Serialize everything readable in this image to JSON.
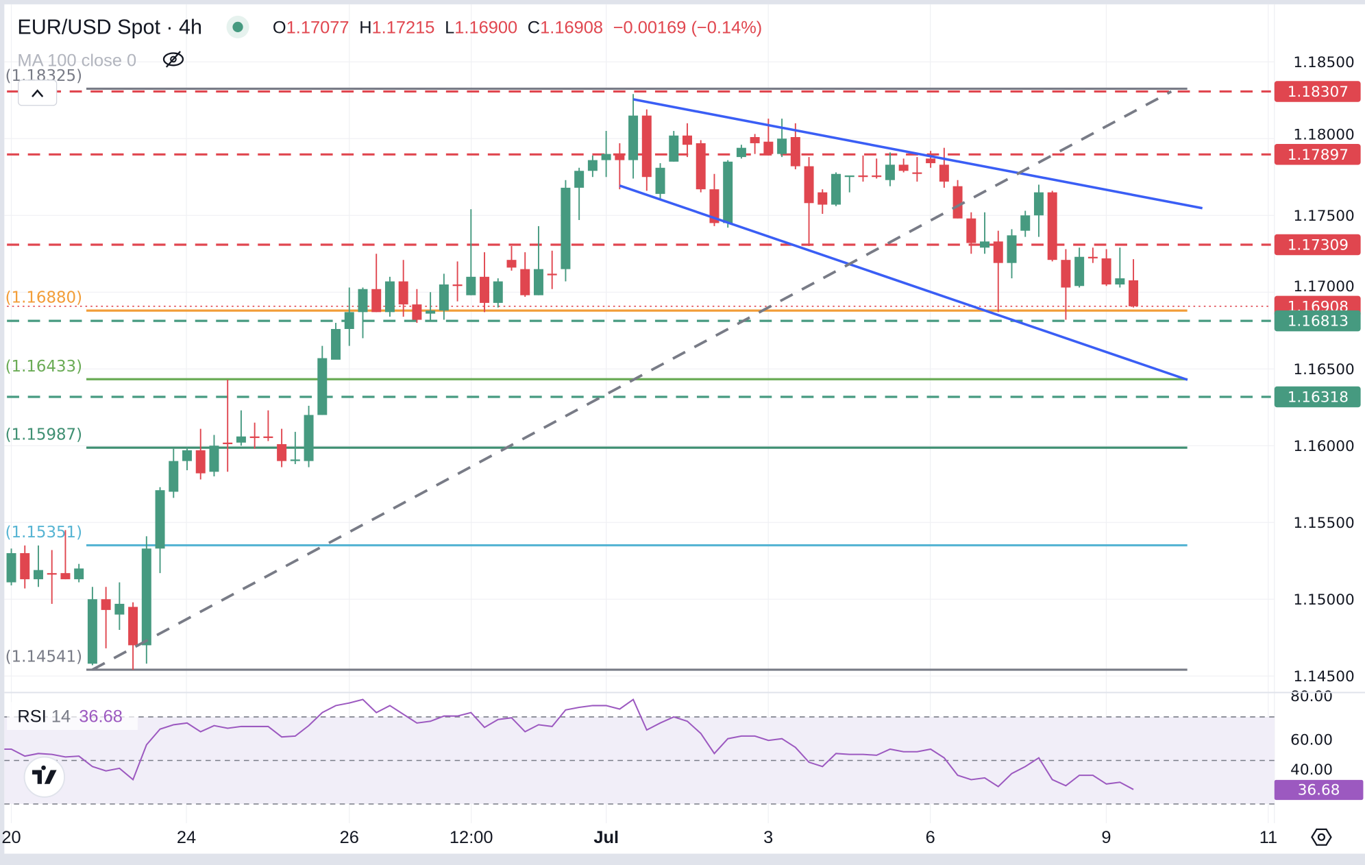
{
  "header": {
    "symbol": "EUR/USD Spot · 4h",
    "market_status_color": "#469a80",
    "ohlc": {
      "o_label": "O",
      "o": "1.17077",
      "h_label": "H",
      "h": "1.17215",
      "l_label": "L",
      "l": "1.16900",
      "c_label": "C",
      "c": "1.16908",
      "change": "−0.00169 (−0.14%)"
    },
    "indicator": "MA 100 close 0",
    "indicator_icon": "eye-off-icon",
    "collapse_icon": "chevron-up-icon"
  },
  "colors": {
    "up": "#469a80",
    "down": "#e0464f",
    "trendline": "#3a5ef5",
    "rsi": "#9c59c0",
    "rsi_band": "#f1eef8"
  },
  "chart_data": {
    "type": "candlestick",
    "title": "EUR/USD Spot · 4h",
    "ylim": [
      1.1445,
      1.1855
    ],
    "y_ticks": [
      "1.18500",
      "1.18000",
      "1.17500",
      "1.17000",
      "1.16500",
      "1.16000",
      "1.15500",
      "1.15000",
      "1.14500"
    ],
    "y_tick_values": [
      1.185,
      1.18,
      1.175,
      1.17,
      1.165,
      1.16,
      1.155,
      1.15,
      1.145
    ],
    "x_ticks": [
      "20",
      "24",
      "26",
      "12:00",
      "Jul",
      "3",
      "6",
      "9",
      "11"
    ],
    "grid": true,
    "candles_ohlc": [
      [
        1.1511,
        1.1533,
        1.1509,
        1.153
      ],
      [
        1.153,
        1.1535,
        1.1507,
        1.1513
      ],
      [
        1.1513,
        1.1535,
        1.1508,
        1.1519
      ],
      [
        1.1517,
        1.1532,
        1.1497,
        1.1516
      ],
      [
        1.1517,
        1.1545,
        1.1513,
        1.1513
      ],
      [
        1.1513,
        1.1523,
        1.1511,
        1.152
      ],
      [
        1.1458,
        1.1508,
        1.1457,
        1.15
      ],
      [
        1.15,
        1.1508,
        1.1468,
        1.1493
      ],
      [
        1.149,
        1.1511,
        1.148,
        1.1497
      ],
      [
        1.1495,
        1.1498,
        1.1454,
        1.147
      ],
      [
        1.147,
        1.1541,
        1.1458,
        1.1533
      ],
      [
        1.1533,
        1.1573,
        1.1517,
        1.1571
      ],
      [
        1.157,
        1.1598,
        1.1566,
        1.159
      ],
      [
        1.159,
        1.1599,
        1.1584,
        1.1597
      ],
      [
        1.1597,
        1.1611,
        1.1578,
        1.1582
      ],
      [
        1.1583,
        1.1607,
        1.158,
        1.16
      ],
      [
        1.1602,
        1.1643,
        1.1583,
        1.1601
      ],
      [
        1.1602,
        1.1623,
        1.16,
        1.1606
      ],
      [
        1.1606,
        1.1615,
        1.1598,
        1.1605
      ],
      [
        1.1606,
        1.1623,
        1.1603,
        1.1605
      ],
      [
        1.1601,
        1.1611,
        1.1586,
        1.159
      ],
      [
        1.159,
        1.1609,
        1.1588,
        1.1591
      ],
      [
        1.159,
        1.1626,
        1.1586,
        1.162
      ],
      [
        1.162,
        1.1665,
        1.162,
        1.1657
      ],
      [
        1.1656,
        1.168,
        1.1665,
        1.1676
      ],
      [
        1.1676,
        1.1703,
        1.1665,
        1.1687
      ],
      [
        1.1687,
        1.1703,
        1.167,
        1.1702
      ],
      [
        1.1702,
        1.1725,
        1.1687,
        1.1687
      ],
      [
        1.1687,
        1.171,
        1.1684,
        1.1707
      ],
      [
        1.1707,
        1.1721,
        1.1684,
        1.1692
      ],
      [
        1.1692,
        1.1702,
        1.168,
        1.1682
      ],
      [
        1.1686,
        1.17,
        1.1682,
        1.1688
      ],
      [
        1.1688,
        1.1712,
        1.1682,
        1.1705
      ],
      [
        1.1705,
        1.172,
        1.1694,
        1.1704
      ],
      [
        1.1698,
        1.1754,
        1.1698,
        1.171
      ],
      [
        1.171,
        1.1726,
        1.1687,
        1.1693
      ],
      [
        1.1693,
        1.1709,
        1.169,
        1.1707
      ],
      [
        1.1721,
        1.173,
        1.1714,
        1.1716
      ],
      [
        1.1715,
        1.1726,
        1.1697,
        1.1698
      ],
      [
        1.1698,
        1.1743,
        1.1698,
        1.1715
      ],
      [
        1.1712,
        1.1727,
        1.1702,
        1.1711
      ],
      [
        1.1715,
        1.1773,
        1.1707,
        1.1768
      ],
      [
        1.1768,
        1.1781,
        1.1747,
        1.1779
      ],
      [
        1.1779,
        1.1789,
        1.1775,
        1.1786
      ],
      [
        1.1786,
        1.1805,
        1.1775,
        1.179
      ],
      [
        1.179,
        1.1797,
        1.1767,
        1.1786
      ],
      [
        1.1786,
        1.1829,
        1.1774,
        1.1815
      ],
      [
        1.1815,
        1.1819,
        1.1766,
        1.1775
      ],
      [
        1.1764,
        1.1784,
        1.176,
        1.1781
      ],
      [
        1.1785,
        1.1805,
        1.1785,
        1.1802
      ],
      [
        1.1802,
        1.181,
        1.1788,
        1.1796
      ],
      [
        1.1797,
        1.1799,
        1.1765,
        1.1767
      ],
      [
        1.1767,
        1.1777,
        1.1743,
        1.1745
      ],
      [
        1.1745,
        1.1786,
        1.1742,
        1.1785
      ],
      [
        1.1788,
        1.1796,
        1.1787,
        1.1794
      ],
      [
        1.1801,
        1.1803,
        1.179,
        1.1797
      ],
      [
        1.1798,
        1.1813,
        1.1789,
        1.179
      ],
      [
        1.179,
        1.1813,
        1.1788,
        1.18
      ],
      [
        1.1801,
        1.181,
        1.178,
        1.1782
      ],
      [
        1.1782,
        1.1788,
        1.173,
        1.1758
      ],
      [
        1.1765,
        1.1767,
        1.1751,
        1.1757
      ],
      [
        1.1757,
        1.1778,
        1.1756,
        1.1777
      ],
      [
        1.1775,
        1.1776,
        1.1765,
        1.1776
      ],
      [
        1.1776,
        1.1789,
        1.1772,
        1.1775
      ],
      [
        1.1776,
        1.1787,
        1.1774,
        1.1775
      ],
      [
        1.1773,
        1.1791,
        1.1769,
        1.1783
      ],
      [
        1.1783,
        1.1787,
        1.1778,
        1.1779
      ],
      [
        1.1778,
        1.1788,
        1.1772,
        1.1777
      ],
      [
        1.1787,
        1.1792,
        1.1781,
        1.1784
      ],
      [
        1.1783,
        1.1794,
        1.1768,
        1.1772
      ],
      [
        1.1769,
        1.1773,
        1.1748,
        1.1748
      ],
      [
        1.1748,
        1.1752,
        1.1725,
        1.1732
      ],
      [
        1.1729,
        1.1752,
        1.1725,
        1.1733
      ],
      [
        1.1733,
        1.174,
        1.1687,
        1.1719
      ],
      [
        1.1719,
        1.1741,
        1.1709,
        1.1737
      ],
      [
        1.174,
        1.1753,
        1.1736,
        1.175
      ],
      [
        1.175,
        1.177,
        1.1736,
        1.1765
      ],
      [
        1.1765,
        1.1766,
        1.172,
        1.1721
      ],
      [
        1.1721,
        1.1728,
        1.1682,
        1.1703
      ],
      [
        1.1704,
        1.1729,
        1.1703,
        1.1723
      ],
      [
        1.1723,
        1.1729,
        1.1719,
        1.1722
      ],
      [
        1.1722,
        1.1728,
        1.1704,
        1.1705
      ],
      [
        1.1705,
        1.1729,
        1.1703,
        1.1709
      ],
      [
        1.17077,
        1.17215,
        1.169,
        1.16908
      ]
    ],
    "levels": [
      {
        "price": 1.18325,
        "label": "(1.18325)",
        "color": "#787b86",
        "style": "solid",
        "left_label": true,
        "from_bar": 6
      },
      {
        "price": 1.18307,
        "label": "1.18307",
        "color": "#e0464f",
        "style": "dashed",
        "badge": true
      },
      {
        "price": 1.17897,
        "label": "1.17897",
        "color": "#e0464f",
        "style": "dashed",
        "badge": true
      },
      {
        "price": 1.17309,
        "label": "1.17309",
        "color": "#e0464f",
        "style": "dashed",
        "badge": true
      },
      {
        "price": 1.16908,
        "label": "1.16908",
        "color": "#e0464f",
        "style": "dotted",
        "badge": true
      },
      {
        "price": 1.1688,
        "label": "(1.16880)",
        "color": "#f29d38",
        "style": "solid",
        "left_label": true,
        "from_bar": 6
      },
      {
        "price": 1.16813,
        "label": "1.16813",
        "color": "#469a80",
        "style": "dashed",
        "badge": true
      },
      {
        "price": 1.16433,
        "label": "(1.16433)",
        "color": "#6aab55",
        "style": "solid",
        "left_label": true,
        "from_bar": 6
      },
      {
        "price": 1.16318,
        "label": "1.16318",
        "color": "#469a80",
        "style": "dashed",
        "badge": true
      },
      {
        "price": 1.15987,
        "label": "(1.15987)",
        "color": "#3f8f72",
        "style": "solid",
        "left_label": true,
        "from_bar": 6
      },
      {
        "price": 1.15351,
        "label": "(1.15351)",
        "color": "#56b4d3",
        "style": "solid",
        "left_label": true,
        "from_bar": 6
      },
      {
        "price": 1.14541,
        "label": "(1.14541)",
        "color": "#787b86",
        "style": "solid",
        "left_label": true,
        "from_bar": 6
      }
    ],
    "trendlines": [
      {
        "from_bar": 46,
        "from_price": 1.18256,
        "to_bar": 88.1,
        "to_price": 1.17547,
        "color": "#3a5ef5",
        "style": "solid"
      },
      {
        "from_bar": 45,
        "from_price": 1.17694,
        "to_bar": 87,
        "to_price": 1.16429,
        "color": "#3a5ef5",
        "style": "solid"
      },
      {
        "from_bar": 6,
        "from_price": 1.14541,
        "to_bar": 85.8,
        "to_price": 1.18307,
        "color": "#787b86",
        "style": "dashed"
      }
    ],
    "rsi": {
      "label": "RSI",
      "length": "14",
      "value": "36.68",
      "ylim": [
        20,
        80
      ],
      "y_ticks": [
        "80.00",
        "60.00",
        "40.00"
      ],
      "y_tick_values": [
        80,
        60,
        40
      ],
      "band": [
        30,
        70
      ],
      "guides": [
        70,
        50,
        30
      ],
      "values": [
        55.2,
        52,
        53.2,
        52.8,
        51.6,
        52,
        47.2,
        45.2,
        46.4,
        41.2,
        57.2,
        64.4,
        66.4,
        67.2,
        63.2,
        66,
        64.8,
        65.6,
        65.6,
        65.6,
        60.8,
        61.2,
        66,
        72,
        75.2,
        76.4,
        78,
        72,
        75.2,
        71.2,
        67.2,
        68,
        70.4,
        70.4,
        72,
        65.2,
        68.8,
        69.6,
        63.2,
        66.4,
        65.6,
        73.2,
        74.4,
        75.2,
        75.2,
        73.6,
        78,
        64,
        67.2,
        70,
        68,
        62.4,
        53.2,
        60,
        61.2,
        61.2,
        59.2,
        60,
        56,
        49.2,
        47.2,
        53.2,
        52.8,
        52.8,
        52.4,
        55.2,
        54,
        54,
        55.2,
        51.2,
        43.2,
        41.2,
        42,
        38,
        44,
        47.2,
        51.2,
        41.2,
        38.4,
        43.2,
        43.2,
        39.2,
        40,
        36.68
      ]
    }
  },
  "footer": {
    "settings_icon": "gear-icon",
    "logo": "TV"
  }
}
